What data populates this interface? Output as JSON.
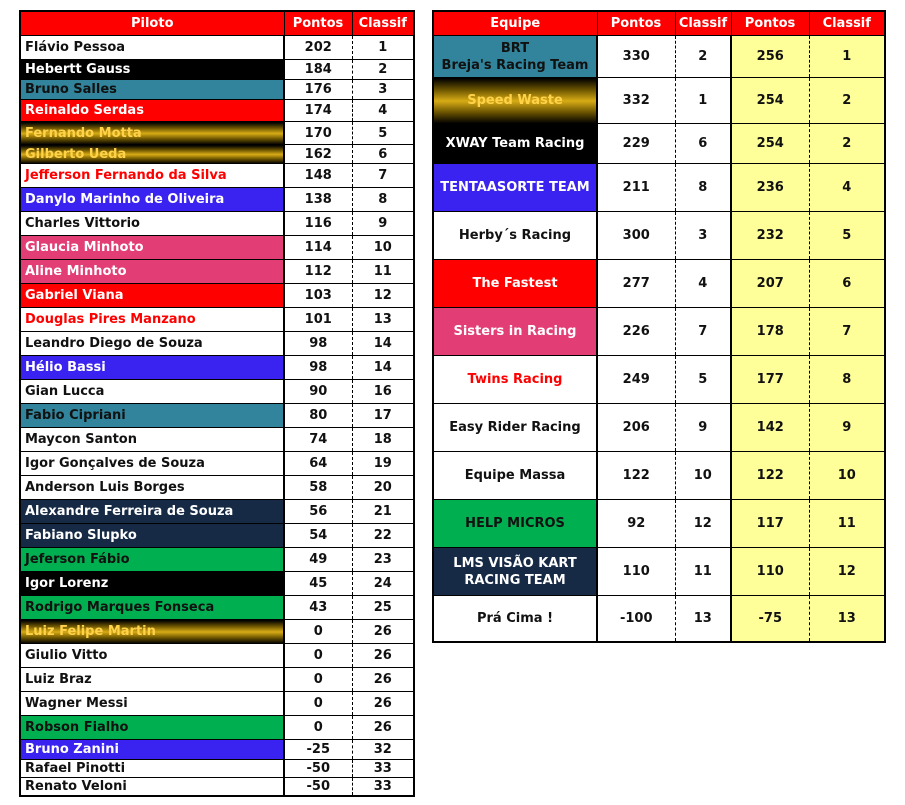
{
  "drivers_header": {
    "name": "Piloto",
    "points": "Pontos",
    "position": "Classif"
  },
  "drivers": [
    {
      "name": "Flávio Pessoa",
      "points": "202",
      "position": "1",
      "style": "white"
    },
    {
      "name": "Hebertt Gauss",
      "points": "184",
      "position": "2",
      "style": "black"
    },
    {
      "name": "Bruno Salles",
      "points": "176",
      "position": "3",
      "style": "teal"
    },
    {
      "name": "Reinaldo Serdas",
      "points": "174",
      "position": "4",
      "style": "red"
    },
    {
      "name": "Fernando Motta",
      "points": "170",
      "position": "5",
      "style": "gold"
    },
    {
      "name": "Gilberto Ueda",
      "points": "162",
      "position": "6",
      "style": "gold"
    },
    {
      "name": "Jefferson Fernando da Silva",
      "points": "148",
      "position": "7",
      "style": "redtext"
    },
    {
      "name": "Danylo Marinho de Oliveira",
      "points": "138",
      "position": "8",
      "style": "purple"
    },
    {
      "name": "Charles Vittorio",
      "points": "116",
      "position": "9",
      "style": "white"
    },
    {
      "name": "Glaucia Minhoto",
      "points": "114",
      "position": "10",
      "style": "pink"
    },
    {
      "name": "Aline Minhoto",
      "points": "112",
      "position": "11",
      "style": "pink"
    },
    {
      "name": "Gabriel Viana",
      "points": "103",
      "position": "12",
      "style": "red"
    },
    {
      "name": "Douglas Pires Manzano",
      "points": "101",
      "position": "13",
      "style": "redtext"
    },
    {
      "name": "Leandro Diego de Souza",
      "points": "98",
      "position": "14",
      "style": "white"
    },
    {
      "name": "Hélio Bassi",
      "points": "98",
      "position": "14",
      "style": "purple"
    },
    {
      "name": "Gian Lucca",
      "points": "90",
      "position": "16",
      "style": "white"
    },
    {
      "name": "Fabio Cipriani",
      "points": "80",
      "position": "17",
      "style": "teal"
    },
    {
      "name": "Maycon Santon",
      "points": "74",
      "position": "18",
      "style": "white"
    },
    {
      "name": "Igor Gonçalves de Souza",
      "points": "64",
      "position": "19",
      "style": "white"
    },
    {
      "name": "Anderson Luis Borges",
      "points": "58",
      "position": "20",
      "style": "white"
    },
    {
      "name": "Alexandre Ferreira de Souza",
      "points": "56",
      "position": "21",
      "style": "navy"
    },
    {
      "name": "Fabiano Slupko",
      "points": "54",
      "position": "22",
      "style": "navy"
    },
    {
      "name": "Jeferson Fábio",
      "points": "49",
      "position": "23",
      "style": "green"
    },
    {
      "name": "Igor Lorenz",
      "points": "45",
      "position": "24",
      "style": "black"
    },
    {
      "name": "Rodrigo Marques Fonseca",
      "points": "43",
      "position": "25",
      "style": "green"
    },
    {
      "name": "Luiz Felipe Martin",
      "points": "0",
      "position": "26",
      "style": "gold"
    },
    {
      "name": "Giulio Vitto",
      "points": "0",
      "position": "26",
      "style": "white"
    },
    {
      "name": "Luiz Braz",
      "points": "0",
      "position": "26",
      "style": "white"
    },
    {
      "name": "Wagner Messi",
      "points": "0",
      "position": "26",
      "style": "white"
    },
    {
      "name": "Robson Fialho",
      "points": "0",
      "position": "26",
      "style": "green"
    },
    {
      "name": "Bruno Zanini",
      "points": "-25",
      "position": "32",
      "style": "purple"
    },
    {
      "name": "Rafael Pinotti",
      "points": "-50",
      "position": "33",
      "style": "white"
    },
    {
      "name": "Renato Veloni",
      "points": "-50",
      "position": "33",
      "style": "white"
    }
  ],
  "teams_header": {
    "name": "Equipe",
    "points": "Pontos",
    "position": "Classif",
    "points2": "Pontos",
    "position2": "Classif"
  },
  "teams": [
    {
      "name": "BRT\nBreja's Racing Team",
      "points": "330",
      "position": "2",
      "points2": "256",
      "position2": "1",
      "style": "teal"
    },
    {
      "name": "Speed Waste",
      "points": "332",
      "position": "1",
      "points2": "254",
      "position2": "2",
      "style": "gold"
    },
    {
      "name": "XWAY Team Racing",
      "points": "229",
      "position": "6",
      "points2": "254",
      "position2": "2",
      "style": "black"
    },
    {
      "name": "TENTAASORTE TEAM",
      "points": "211",
      "position": "8",
      "points2": "236",
      "position2": "4",
      "style": "purple"
    },
    {
      "name": "Herby´s Racing",
      "points": "300",
      "position": "3",
      "points2": "232",
      "position2": "5",
      "style": "white"
    },
    {
      "name": "The Fastest",
      "points": "277",
      "position": "4",
      "points2": "207",
      "position2": "6",
      "style": "red"
    },
    {
      "name": "Sisters in Racing",
      "points": "226",
      "position": "7",
      "points2": "178",
      "position2": "7",
      "style": "pink"
    },
    {
      "name": "Twins Racing",
      "points": "249",
      "position": "5",
      "points2": "177",
      "position2": "8",
      "style": "redtext"
    },
    {
      "name": "Easy Rider Racing",
      "points": "206",
      "position": "9",
      "points2": "142",
      "position2": "9",
      "style": "white"
    },
    {
      "name": "Equipe Massa",
      "points": "122",
      "position": "10",
      "points2": "122",
      "position2": "10",
      "style": "white"
    },
    {
      "name": "HELP MICROS",
      "points": "92",
      "position": "12",
      "points2": "117",
      "position2": "11",
      "style": "green"
    },
    {
      "name": "LMS VISÃO KART\nRACING TEAM",
      "points": "110",
      "position": "11",
      "points2": "110",
      "position2": "12",
      "style": "navy"
    },
    {
      "name": "Prá Cima !",
      "points": "-100",
      "position": "13",
      "points2": "-75",
      "position2": "13",
      "style": "white"
    }
  ],
  "colors": {
    "header_bg": "#ff0000",
    "highlight_col": "#ffff99",
    "teal": "#31849b",
    "purple": "#3a22f0",
    "pink": "#e23d74",
    "navy": "#172a45",
    "green": "#00b050",
    "gold": "#d8ac16"
  }
}
